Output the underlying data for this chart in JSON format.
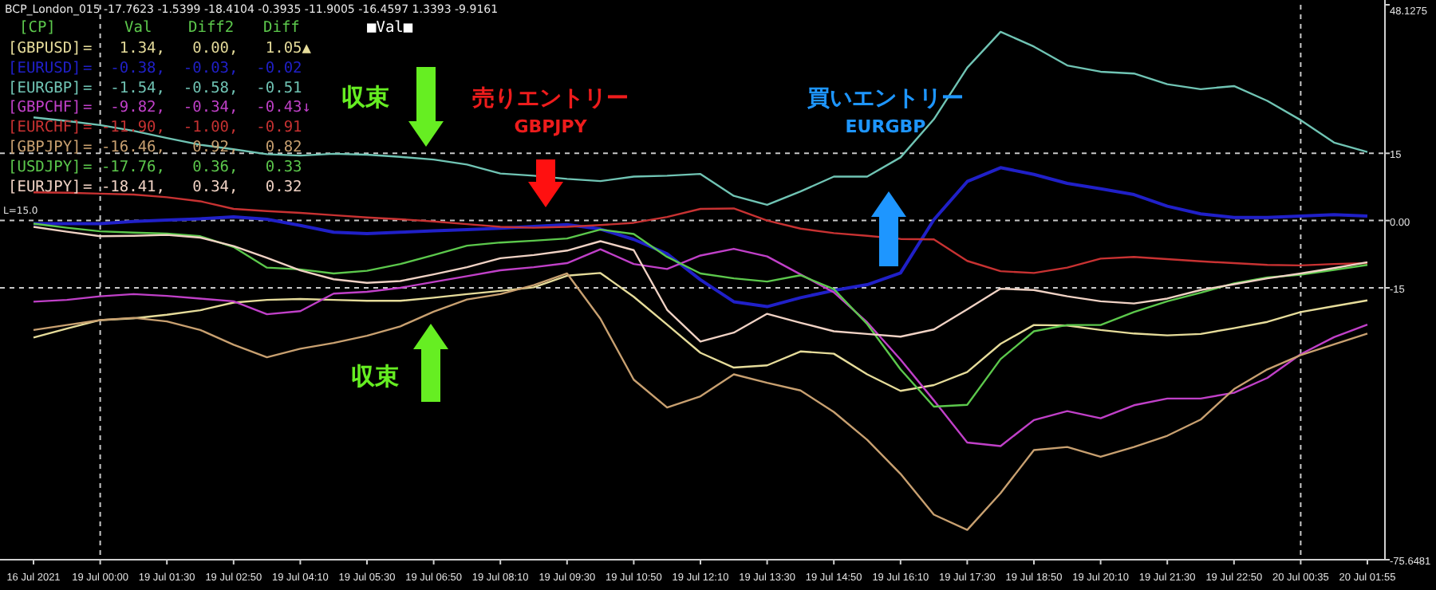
{
  "chart_data": {
    "type": "line",
    "ylim": [
      -75.6481,
      48.1275
    ],
    "categories": [
      "16 Jul 2021",
      null,
      "19 Jul 00:00",
      null,
      "19 Jul 01:30",
      null,
      "19 Jul 02:50",
      null,
      "19 Jul 04:10",
      null,
      "19 Jul 05:30",
      null,
      "19 Jul 06:50",
      null,
      "19 Jul 08:10",
      null,
      "19 Jul 09:30",
      null,
      "19 Jul 10:50",
      null,
      "19 Jul 12:10",
      null,
      "19 Jul 13:30",
      null,
      "19 Jul 14:50",
      null,
      "19 Jul 16:10",
      null,
      "19 Jul 17:30",
      null,
      "19 Jul 18:50",
      null,
      "19 Jul 20:10",
      null,
      "19 Jul 21:30",
      null,
      "19 Jul 22:50",
      null,
      "20 Jul 00:35",
      null,
      "20 Jul 01:55"
    ],
    "yticks": [
      48.1275,
      15,
      {
        "value": 0,
        "label": "0.00"
      },
      -15,
      -75.6481
    ],
    "legend": "top left",
    "ref_lines": [
      {
        "axis": "y",
        "value": 15,
        "color": "#c8c8c8",
        "line_style": "dashed"
      },
      {
        "axis": "y",
        "value": 0,
        "color": "#c8c8c8",
        "line_style": "dashed"
      },
      {
        "axis": "y",
        "value": -15,
        "color": "#c8c8c8",
        "line_style": "dashed"
      },
      {
        "axis": "x",
        "value": "19 Jul 00:00",
        "color": "#c8c8c8",
        "line_style": "dashed"
      },
      {
        "axis": "x",
        "value": "20 Jul 00:35",
        "color": "#c8c8c8",
        "line_style": "dashed"
      }
    ],
    "annotations": [
      "BCP_London_015 -17.7623 -1.5399 -18.4104 -0.3935 -11.9005 -16.4597 1.3393 -9.9161",
      "[CP]",
      "Val",
      "Diff2",
      "Diff",
      "=   1.34,   0.00,   1.05▲",
      "=  -0.38,  -0.03,  -0.02",
      "=  -1.54,  -0.58,  -0.51",
      "=  -9.82,  -0.34,  -0.43↓",
      "= -11.90,  -1.00,  -0.91",
      "= -16.46,   0.92,   0.82",
      "= -17.76,   0.36,   0.33",
      "= -18.41,   0.34,   0.32",
      "■Val■",
      "L=15.0",
      "収束",
      "売りエントリー",
      "GBPJPY",
      "買いエントリー",
      "EURGBP",
      "収束"
    ],
    "series": [
      {
        "name": "[GBPUSD]",
        "color": "#e6dc9a",
        "values": [
          -26.1,
          -24.1,
          -22.2,
          -21.8,
          -21.0,
          -20.0,
          -18.3,
          -17.7,
          -17.5,
          -17.7,
          -17.9,
          -17.9,
          -17.2,
          -16.4,
          -15.7,
          -14.9,
          -12.3,
          -11.7,
          -17.0,
          -23.2,
          -29.5,
          -32.8,
          -32.3,
          -29.2,
          -29.7,
          -34.3,
          -38,
          -36.7,
          -33.8,
          -27.5,
          -23.3,
          -23.4,
          -24.4,
          -25.2,
          -25.6,
          -25.3,
          -24.0,
          -22.6,
          -20.4,
          -19.1,
          -17.8
        ]
      },
      {
        "name": "[EURUSD]",
        "color": "#2020c8",
        "values": [
          -0.7,
          -0.7,
          -0.7,
          -0.2,
          0.1,
          0.4,
          0.8,
          0.3,
          -1.1,
          -2.6,
          -2.9,
          -2.6,
          -2.3,
          -2.0,
          -1.7,
          -1.3,
          -0.9,
          -1.9,
          -4.2,
          -7.4,
          -13.2,
          -18.1,
          -19.2,
          -17.2,
          -15.6,
          -14.3,
          -11.7,
          0.2,
          8.7,
          11.8,
          10.3,
          8.3,
          7.1,
          5.8,
          3.2,
          1.5,
          0.7,
          0.7,
          1.0,
          1.3,
          1.0
        ]
      },
      {
        "name": "[EURGBP]",
        "color": "#70c4b4",
        "values": [
          23,
          22.2,
          21.3,
          20.0,
          18.4,
          16.9,
          15.9,
          14.8,
          14.5,
          14.9,
          14.7,
          14.2,
          13.6,
          12.5,
          10.5,
          10.0,
          9.3,
          8.8,
          9.8,
          10.0,
          10.4,
          5.5,
          3.5,
          6.5,
          9.8,
          9.8,
          14.1,
          22.6,
          34.1,
          42.1,
          38.8,
          34.6,
          33.2,
          32.8,
          30.4,
          29.3,
          30.0,
          26.7,
          22.4,
          17.4,
          15.3
        ]
      },
      {
        "name": "[GBPCHF]",
        "color": "#c040c8",
        "values": [
          -18.1,
          -17.7,
          -16.9,
          -16.4,
          -16.8,
          -17.4,
          -18.0,
          -20.9,
          -20.2,
          -16.3,
          -15.9,
          -15.0,
          -13.7,
          -12.4,
          -11.1,
          -10.4,
          -9.5,
          -6.4,
          -9.7,
          -10.8,
          -7.8,
          -6.3,
          -8,
          -12.0,
          -16,
          -22.7,
          -31.0,
          -40.1,
          -49.5,
          -50.3,
          -44.5,
          -42.5,
          -44.1,
          -41.2,
          -39.7,
          -39.7,
          -38.4,
          -35.1,
          -29.8,
          -26.0,
          -23.2
        ]
      },
      {
        "name": "[EURCHF]",
        "color": "#c83232",
        "values": [
          6.3,
          6.2,
          6.0,
          5.8,
          5.2,
          4.3,
          2.6,
          2.1,
          1.7,
          1.2,
          0.7,
          0.3,
          -0.2,
          -0.8,
          -1.4,
          -1.6,
          -1.4,
          -1.0,
          -0.5,
          0.8,
          2.6,
          2.7,
          0,
          -1.8,
          -2.8,
          -3.4,
          -4.1,
          -4.2,
          -9.0,
          -11.3,
          -11.7,
          -10.5,
          -8.5,
          -8.1,
          -8.6,
          -9.1,
          -9.5,
          -9.9,
          -10.0,
          -9.7,
          -9.5
        ]
      },
      {
        "name": "[GBPJPY]",
        "color": "#c8a070",
        "values": [
          -24.4,
          -23.3,
          -22.2,
          -21.7,
          -22.5,
          -24.4,
          -27.7,
          -30.5,
          -28.6,
          -27.3,
          -25.7,
          -23.6,
          -20.3,
          -17.6,
          -16.4,
          -14.4,
          -11.8,
          -21.9,
          -35.5,
          -41.7,
          -39.2,
          -34.3,
          -36.2,
          -37.9,
          -42.7,
          -48.9,
          -56.5,
          -65.6,
          -69.0,
          -60.8,
          -51.2,
          -50.5,
          -52.7,
          -50.5,
          -48.0,
          -44.4,
          -37.6,
          -33.2,
          -30.0,
          -27.6,
          -25.2
        ]
      },
      {
        "name": "[USDJPY]",
        "color": "#5cc84c",
        "values": [
          -0.7,
          -1.6,
          -2.4,
          -2.7,
          -2.9,
          -3.5,
          -5.9,
          -10.5,
          -10.9,
          -11.8,
          -11.2,
          -9.7,
          -7.7,
          -5.6,
          -4.9,
          -4.5,
          -4.0,
          -2.0,
          -3.0,
          -8.1,
          -11.8,
          -12.9,
          -13.6,
          -12.2,
          -15.3,
          -23.1,
          -33.2,
          -41.5,
          -41.1,
          -30.9,
          -24.7,
          -23.3,
          -23.3,
          -20.4,
          -18.0,
          -16.1,
          -14.0,
          -12.7,
          -12.1,
          -11.0,
          -9.9
        ]
      },
      {
        "name": "[EURJPY]",
        "color": "#f0d2c4",
        "values": [
          -1.4,
          -2.5,
          -3.5,
          -3.4,
          -3.2,
          -3.8,
          -5.7,
          -8.3,
          -11.1,
          -13.1,
          -13.9,
          -13.5,
          -12.0,
          -10.4,
          -8.4,
          -7.7,
          -6.7,
          -4.6,
          -6.6,
          -19.9,
          -27.0,
          -25.0,
          -20.8,
          -22.8,
          -24.7,
          -25.3,
          -25.9,
          -24.3,
          -19.8,
          -15.2,
          -15.5,
          -16.9,
          -18.0,
          -18.5,
          -17.4,
          -15.5,
          -14.2,
          -12.9,
          -11.8,
          -10.6,
          -9.3
        ]
      }
    ]
  }
}
